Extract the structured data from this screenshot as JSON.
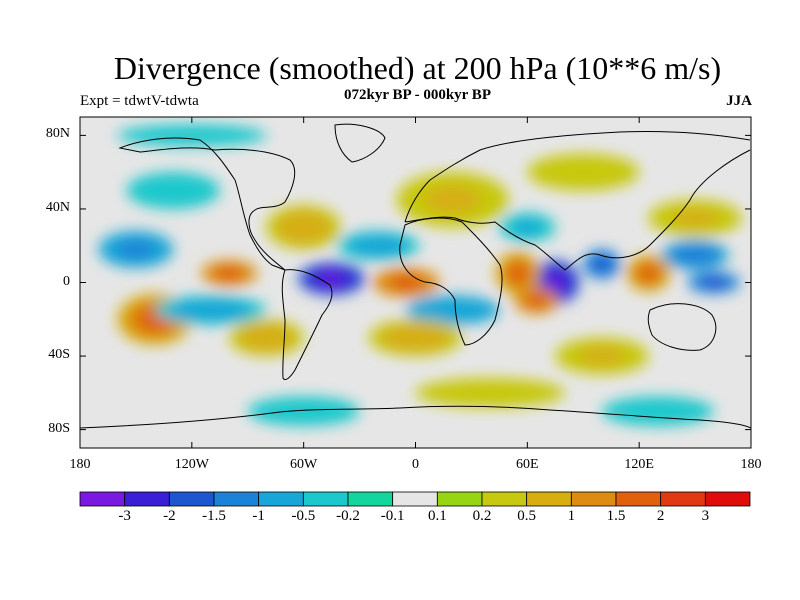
{
  "title": "Divergence (smoothed) at 200 hPa (10**6 m/s)",
  "subtitle": "072kyr BP - 000kyr BP",
  "experiment_label": "Expt = tdwtV-tdwta",
  "season_label": "JJA",
  "colors": {
    "land_ocean_neutral": "#e6e6e6",
    "coast": "#000000"
  },
  "chart_data": {
    "type": "heatmap",
    "variable": "divergence",
    "level": "200 hPa",
    "xlim": [
      -180,
      180
    ],
    "ylim": [
      -90,
      90
    ],
    "x_ticks": [
      {
        "value": -180,
        "label": "180"
      },
      {
        "value": -120,
        "label": "120W"
      },
      {
        "value": -60,
        "label": "60W"
      },
      {
        "value": 0,
        "label": "0"
      },
      {
        "value": 60,
        "label": "60E"
      },
      {
        "value": 120,
        "label": "120E"
      },
      {
        "value": 180,
        "label": "180"
      }
    ],
    "y_ticks": [
      {
        "value": 80,
        "label": "80N"
      },
      {
        "value": 40,
        "label": "40N"
      },
      {
        "value": 0,
        "label": "0"
      },
      {
        "value": -40,
        "label": "40S"
      },
      {
        "value": -80,
        "label": "80S"
      }
    ],
    "colorbar": {
      "colors": [
        "#7a1ae0",
        "#3a1fd6",
        "#1e56d0",
        "#1b82d8",
        "#17a6d7",
        "#1cc8cc",
        "#14d69c",
        "#e6e6e6",
        "#96d414",
        "#c7c810",
        "#d6ae12",
        "#dc8c10",
        "#e0600e",
        "#e03a12",
        "#e00c0c"
      ],
      "labels": [
        "-3",
        "-2",
        "-1.5",
        "-1",
        "-0.5",
        "-0.2",
        "-0.1",
        "0.1",
        "0.2",
        "0.5",
        "1",
        "1.5",
        "2",
        "3"
      ]
    },
    "features": [
      {
        "lon": -45,
        "lat": 2,
        "rx": 18,
        "ry": 9,
        "value": -3.5
      },
      {
        "lon": 75,
        "lat": 0,
        "rx": 13,
        "ry": 12,
        "value": -3.5
      },
      {
        "lon": -100,
        "lat": 5,
        "rx": 15,
        "ry": 7,
        "value": 2.2
      },
      {
        "lon": -5,
        "lat": 0,
        "rx": 18,
        "ry": 8,
        "value": 2.2
      },
      {
        "lon": 55,
        "lat": 5,
        "rx": 12,
        "ry": 12,
        "value": 1.8
      },
      {
        "lon": 65,
        "lat": -10,
        "rx": 12,
        "ry": 7,
        "value": 2.2
      },
      {
        "lon": 125,
        "lat": 5,
        "rx": 12,
        "ry": 10,
        "value": 1.8
      },
      {
        "lon": -140,
        "lat": -20,
        "rx": 20,
        "ry": 14,
        "value": 1.8
      },
      {
        "lon": 160,
        "lat": 0,
        "rx": 14,
        "ry": 6,
        "value": -2.2
      },
      {
        "lon": 150,
        "lat": 15,
        "rx": 18,
        "ry": 8,
        "value": -1.5
      },
      {
        "lon": -150,
        "lat": 18,
        "rx": 20,
        "ry": 10,
        "value": -1.2
      },
      {
        "lon": -20,
        "lat": 20,
        "rx": 22,
        "ry": 8,
        "value": -0.8
      },
      {
        "lon": 100,
        "lat": 10,
        "rx": 10,
        "ry": 8,
        "value": -2.0
      },
      {
        "lon": -110,
        "lat": -15,
        "rx": 30,
        "ry": 8,
        "value": -0.8
      },
      {
        "lon": 20,
        "lat": -15,
        "rx": 25,
        "ry": 8,
        "value": -1.0
      },
      {
        "lon": -60,
        "lat": 30,
        "rx": 20,
        "ry": 12,
        "value": 0.8
      },
      {
        "lon": 20,
        "lat": 45,
        "rx": 30,
        "ry": 15,
        "value": 0.6
      },
      {
        "lon": 150,
        "lat": 35,
        "rx": 25,
        "ry": 10,
        "value": 0.7
      },
      {
        "lon": -80,
        "lat": -30,
        "rx": 20,
        "ry": 10,
        "value": 0.8
      },
      {
        "lon": 0,
        "lat": -30,
        "rx": 25,
        "ry": 10,
        "value": 0.8
      },
      {
        "lon": 100,
        "lat": -40,
        "rx": 25,
        "ry": 10,
        "value": 0.6
      },
      {
        "lon": 40,
        "lat": -60,
        "rx": 40,
        "ry": 8,
        "value": 0.4
      },
      {
        "lon": -60,
        "lat": -70,
        "rx": 30,
        "ry": 8,
        "value": -0.5
      },
      {
        "lon": 130,
        "lat": -70,
        "rx": 30,
        "ry": 8,
        "value": -0.4
      },
      {
        "lon": -130,
        "lat": 50,
        "rx": 25,
        "ry": 10,
        "value": -0.5
      },
      {
        "lon": 90,
        "lat": 60,
        "rx": 30,
        "ry": 10,
        "value": 0.4
      },
      {
        "lon": -120,
        "lat": 80,
        "rx": 40,
        "ry": 6,
        "value": -0.4
      },
      {
        "lon": 60,
        "lat": 30,
        "rx": 15,
        "ry": 8,
        "value": -0.6
      }
    ]
  }
}
